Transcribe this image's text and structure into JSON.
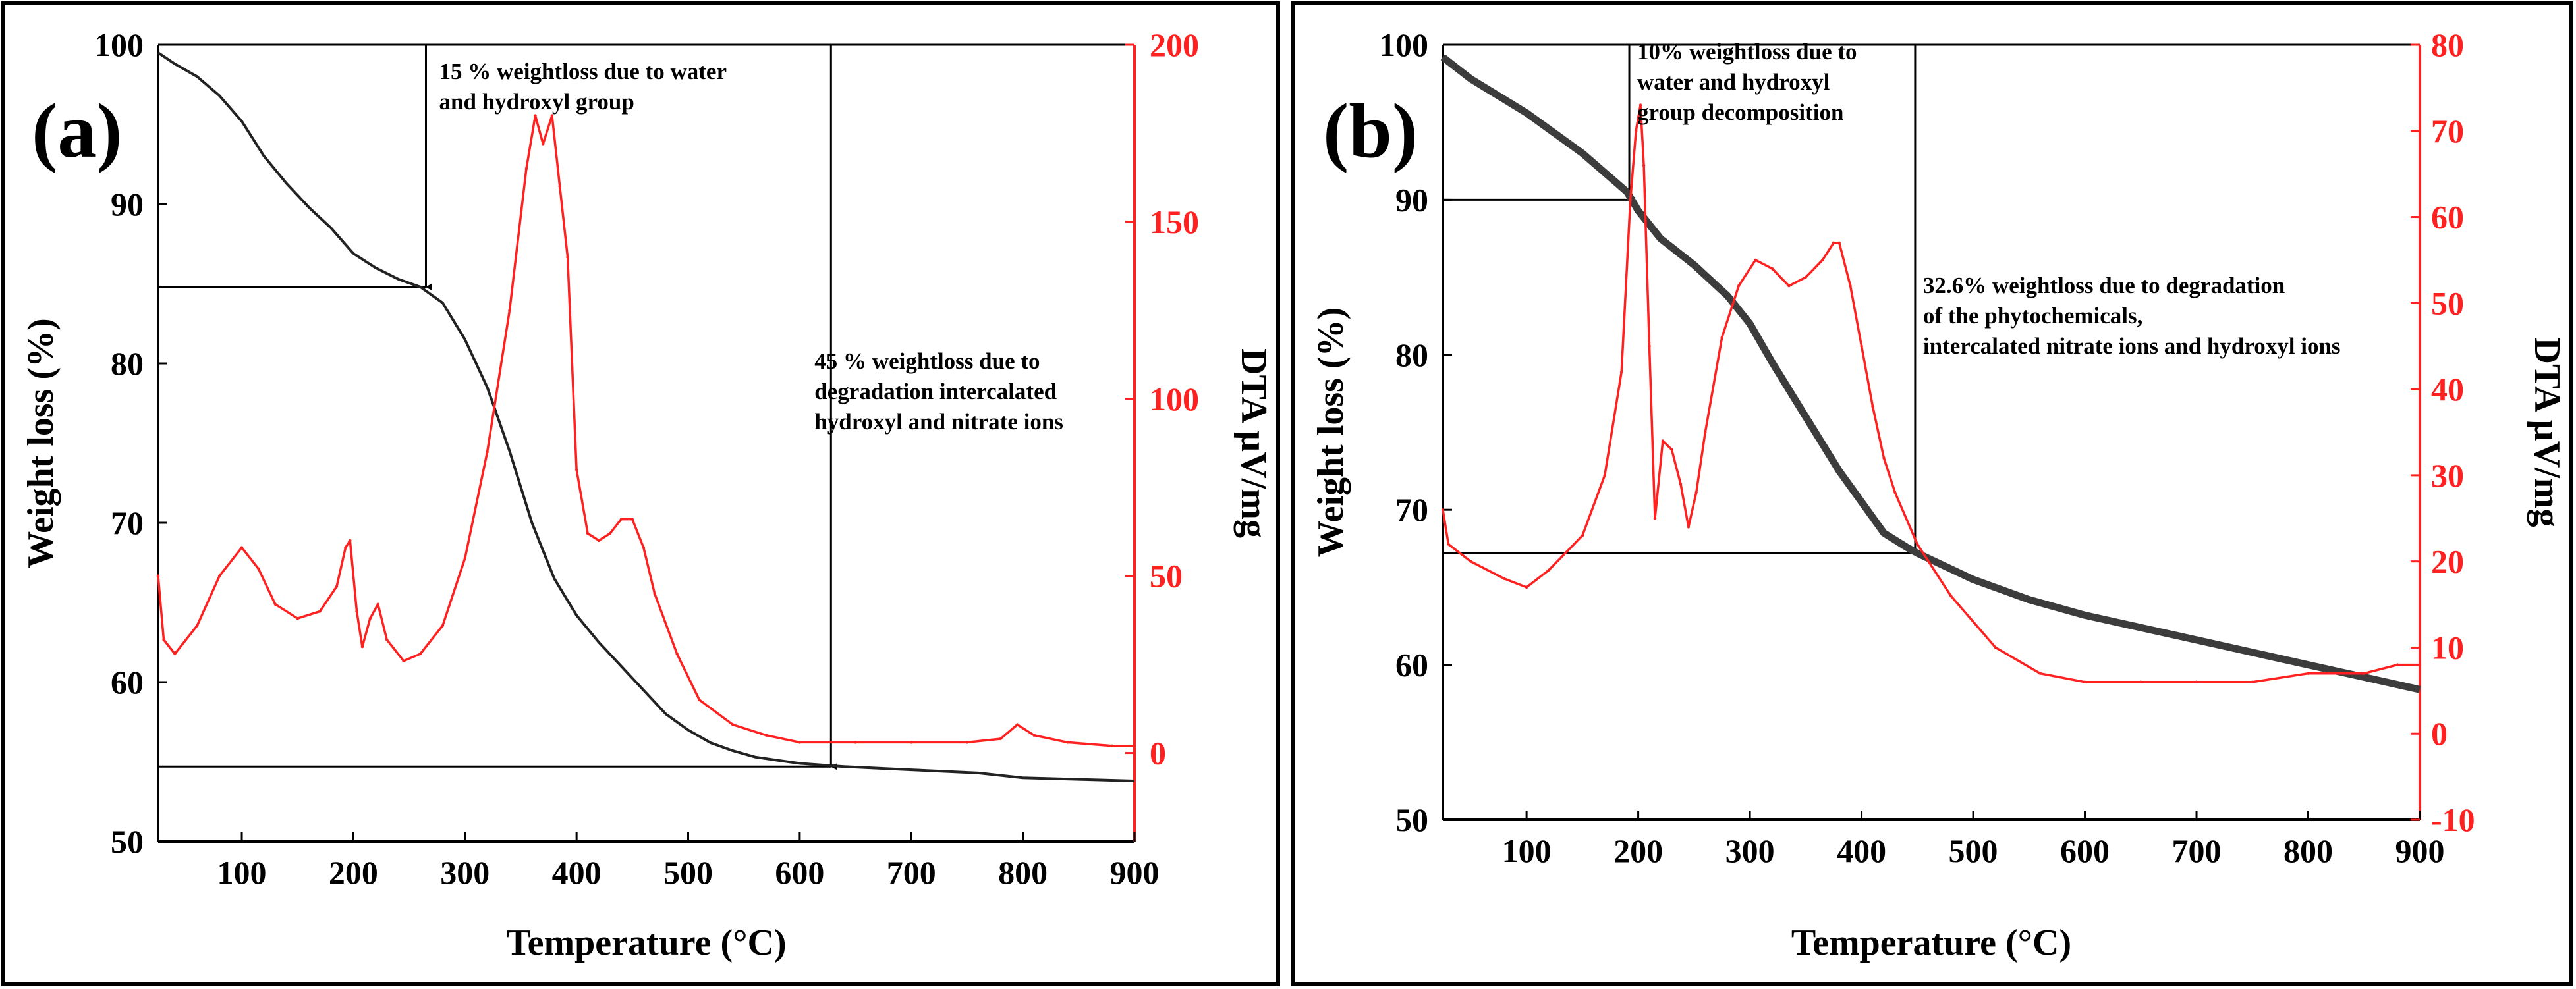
{
  "figure": {
    "panels": 2,
    "description_free": true
  },
  "colors": {
    "weight": "#222222",
    "weight_b": "#3c3c3c",
    "dta": "#ff2020",
    "frame": "#000000",
    "background": "#ffffff"
  },
  "chart_data": [
    {
      "type": "line",
      "panel_label": "(a)",
      "xlabel": "Temperature (°C)",
      "ylabel": "Weight loss (%)",
      "y2label": "DTA µV/mg",
      "xlim": [
        25,
        900
      ],
      "ylim": [
        50,
        100
      ],
      "y2lim": [
        -25,
        200
      ],
      "xticks": [
        100,
        200,
        300,
        400,
        500,
        600,
        700,
        800,
        900
      ],
      "yticks": [
        50,
        60,
        70,
        80,
        90,
        100
      ],
      "y2ticks": [
        0,
        50,
        100,
        150,
        200
      ],
      "series": [
        {
          "name": "Weight loss",
          "axis": "left",
          "x": [
            25,
            40,
            60,
            80,
            100,
            120,
            140,
            160,
            180,
            200,
            220,
            240,
            260,
            280,
            300,
            320,
            340,
            360,
            380,
            400,
            420,
            440,
            460,
            480,
            500,
            520,
            540,
            560,
            580,
            600,
            640,
            700,
            760,
            800,
            850,
            900
          ],
          "y": [
            99.5,
            98.8,
            98.0,
            96.8,
            95.2,
            93.0,
            91.3,
            89.8,
            88.5,
            86.9,
            86.0,
            85.3,
            84.8,
            83.8,
            81.5,
            78.5,
            74.5,
            70.0,
            66.5,
            64.2,
            62.5,
            61.0,
            59.5,
            58.0,
            57.0,
            56.2,
            55.7,
            55.3,
            55.1,
            54.9,
            54.7,
            54.5,
            54.3,
            54.0,
            53.9,
            53.8
          ]
        },
        {
          "name": "DTA",
          "axis": "right",
          "x": [
            25,
            30,
            40,
            60,
            80,
            100,
            115,
            130,
            150,
            170,
            185,
            193,
            197,
            203,
            208,
            215,
            222,
            230,
            245,
            260,
            280,
            300,
            320,
            340,
            355,
            363,
            370,
            378,
            385,
            392,
            400,
            410,
            420,
            430,
            440,
            450,
            460,
            470,
            490,
            510,
            540,
            570,
            600,
            650,
            700,
            750,
            780,
            795,
            810,
            840,
            880,
            900
          ],
          "y": [
            50,
            32,
            28,
            36,
            50,
            58,
            52,
            42,
            38,
            40,
            47,
            58,
            60,
            40,
            30,
            38,
            42,
            32,
            26,
            28,
            36,
            55,
            85,
            125,
            165,
            180,
            172,
            180,
            160,
            140,
            80,
            62,
            60,
            62,
            66,
            66,
            58,
            45,
            28,
            15,
            8,
            5,
            3,
            3,
            3,
            3,
            4,
            8,
            5,
            3,
            2,
            2
          ]
        }
      ],
      "annotations": [
        {
          "text": [
            "15 % weightloss due to water",
            "and hydroxyl group"
          ],
          "at_x": 265,
          "at_y": 84.8
        },
        {
          "text": [
            "45 % weightloss due to",
            "degradation intercalated",
            "hydroxyl and nitrate ions"
          ],
          "at_x": 628,
          "at_y": 54.7
        }
      ],
      "reference_lines": [
        {
          "type": "vertical",
          "x": 265,
          "from_y": 100,
          "to_y": 84.8,
          "arrow": true
        },
        {
          "type": "horizontal",
          "y": 84.8,
          "from_x": 25,
          "to_x": 265
        },
        {
          "type": "vertical",
          "x": 628,
          "from_y": 100,
          "to_y": 54.7,
          "arrow": true
        },
        {
          "type": "horizontal",
          "y": 54.7,
          "from_x": 25,
          "to_x": 628
        }
      ]
    },
    {
      "type": "line",
      "panel_label": "(b)",
      "xlabel": "Temperature (°C)",
      "ylabel": "Weight loss (%)",
      "y2label": "DTA µV/mg",
      "xlim": [
        25,
        900
      ],
      "ylim": [
        50,
        100
      ],
      "y2lim": [
        -10,
        80
      ],
      "xticks": [
        100,
        200,
        300,
        400,
        500,
        600,
        700,
        800,
        900
      ],
      "yticks": [
        50,
        60,
        70,
        80,
        90,
        100
      ],
      "y2ticks": [
        -10,
        0,
        10,
        20,
        30,
        40,
        50,
        60,
        70,
        80
      ],
      "series": [
        {
          "name": "Weight loss",
          "axis": "left",
          "x": [
            25,
            50,
            100,
            150,
            190,
            200,
            220,
            250,
            280,
            300,
            320,
            350,
            380,
            400,
            420,
            440,
            450,
            500,
            550,
            600,
            650,
            700,
            750,
            800,
            850,
            900
          ],
          "y": [
            99.2,
            97.8,
            95.6,
            93.0,
            90.5,
            89.3,
            87.5,
            85.8,
            83.8,
            82.0,
            79.5,
            76.0,
            72.5,
            70.5,
            68.5,
            67.6,
            67.2,
            65.5,
            64.2,
            63.2,
            62.4,
            61.6,
            60.8,
            60.0,
            59.2,
            58.4
          ]
        },
        {
          "name": "DTA",
          "axis": "right",
          "x": [
            25,
            30,
            50,
            80,
            100,
            120,
            150,
            170,
            185,
            193,
            198,
            202,
            205,
            210,
            215,
            222,
            230,
            238,
            245,
            252,
            260,
            275,
            290,
            305,
            320,
            335,
            350,
            365,
            375,
            380,
            390,
            400,
            410,
            420,
            430,
            450,
            480,
            520,
            560,
            600,
            650,
            700,
            750,
            800,
            850,
            880,
            900
          ],
          "y": [
            26,
            22,
            20,
            18,
            17,
            19,
            23,
            30,
            42,
            62,
            70,
            73,
            66,
            45,
            25,
            34,
            33,
            29,
            24,
            28,
            35,
            46,
            52,
            55,
            54,
            52,
            53,
            55,
            57,
            57,
            52,
            45,
            38,
            32,
            28,
            22,
            16,
            10,
            7,
            6,
            6,
            6,
            6,
            7,
            7,
            8,
            8
          ]
        }
      ],
      "annotations": [
        {
          "text": [
            "10% weightloss due to",
            "water and hydroxyl",
            "group decomposition"
          ],
          "at_x": 192,
          "at_y": 90
        },
        {
          "text": [
            "32.6% weightloss due to degradation",
            "of the phytochemicals,",
            "intercalated nitrate ions and hydroxyl ions"
          ],
          "at_x": 448,
          "at_y": 67.2
        }
      ],
      "reference_lines": [
        {
          "type": "vertical",
          "x": 192,
          "from_y": 100,
          "to_y": 90,
          "arrow": true
        },
        {
          "type": "horizontal",
          "y": 90,
          "from_x": 25,
          "to_x": 192
        },
        {
          "type": "vertical",
          "x": 448,
          "from_y": 100,
          "to_y": 67.2,
          "arrow": true
        },
        {
          "type": "horizontal",
          "y": 67.2,
          "from_x": 25,
          "to_x": 448
        }
      ]
    }
  ]
}
